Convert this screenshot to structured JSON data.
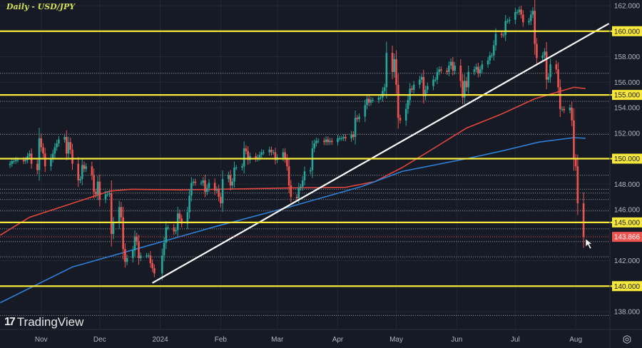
{
  "title": "Daily - USD/JPY",
  "brand": "TradingView",
  "colors": {
    "background": "#161a25",
    "up": "#26a69a",
    "down": "#ef5350",
    "level": "#f7e83b",
    "trendline": "#ffffff",
    "ma_red": "#e0463f",
    "ma_blue": "#2f7fd6",
    "axis_text": "#b2b5be"
  },
  "chart_data": {
    "type": "candlestick",
    "title": "Daily - USD/JPY",
    "ylim": [
      137.5,
      162.3
    ],
    "y_ticks": [
      "162.000",
      "158.000",
      "156.000",
      "154.000",
      "152.000",
      "148.000",
      "146.000",
      "142.000",
      "138.000"
    ],
    "x_ticks": [
      {
        "label": "Nov",
        "date": "2023-11-01"
      },
      {
        "label": "Dec",
        "date": "2023-12-01"
      },
      {
        "label": "2024",
        "date": "2024-01-01"
      },
      {
        "label": "Feb",
        "date": "2024-02-01"
      },
      {
        "label": "Mar",
        "date": "2024-03-01"
      },
      {
        "label": "Apr",
        "date": "2024-04-01"
      },
      {
        "label": "May",
        "date": "2024-05-01"
      },
      {
        "label": "Jun",
        "date": "2024-06-01"
      },
      {
        "label": "Jul",
        "date": "2024-07-01"
      },
      {
        "label": "Aug",
        "date": "2024-08-01"
      }
    ],
    "weeks": [
      {
        "start": "2023-10-16",
        "closes": [
          149.6,
          149.8,
          149.8,
          149.9,
          149.9
        ]
      },
      {
        "start": "2023-10-23",
        "closes": [
          149.8,
          149.9,
          150.2,
          150.4,
          149.6
        ]
      },
      {
        "start": "2023-10-30",
        "closes": [
          149.1,
          151.6,
          150.9,
          150.4,
          149.4
        ]
      },
      {
        "start": "2023-11-06",
        "closes": [
          150.0,
          150.4,
          150.9,
          151.2,
          151.5
        ]
      },
      {
        "start": "2023-11-13",
        "closes": [
          151.7,
          150.4,
          151.3,
          150.7,
          149.6
        ]
      },
      {
        "start": "2023-11-20",
        "closes": [
          148.3,
          148.4,
          149.5,
          149.2,
          149.4
        ]
      },
      {
        "start": "2023-11-27",
        "closes": [
          148.7,
          147.4,
          147.2,
          148.2,
          146.8
        ]
      },
      {
        "start": "2023-12-04",
        "closes": [
          147.2,
          147.2,
          147.3,
          144.1,
          145.0
        ]
      },
      {
        "start": "2023-12-11",
        "closes": [
          146.2,
          145.4,
          142.9,
          141.9,
          142.2
        ]
      },
      {
        "start": "2023-12-18",
        "closes": [
          142.8,
          143.9,
          143.5,
          142.2,
          142.4
        ]
      },
      {
        "start": "2023-12-25",
        "closes": [
          142.4,
          142.4,
          141.8,
          141.4,
          141.0
        ]
      },
      {
        "start": "2024-01-02",
        "closes": [
          142.4,
          143.4,
          144.6,
          144.6
        ]
      },
      {
        "start": "2024-01-08",
        "closes": [
          144.3,
          144.4,
          145.7,
          145.3,
          144.9
        ]
      },
      {
        "start": "2024-01-15",
        "closes": [
          145.8,
          147.1,
          148.1,
          148.2,
          148.1
        ]
      },
      {
        "start": "2024-01-22",
        "closes": [
          148.1,
          148.3,
          147.4,
          147.7,
          148.1
        ]
      },
      {
        "start": "2024-01-29",
        "closes": [
          147.5,
          147.6,
          147.0,
          146.5,
          148.4
        ]
      },
      {
        "start": "2024-02-05",
        "closes": [
          148.7,
          147.9,
          148.2,
          149.3,
          149.3
        ]
      },
      {
        "start": "2024-02-12",
        "closes": [
          149.4,
          150.8,
          150.6,
          149.9,
          150.2
        ]
      },
      {
        "start": "2024-02-19",
        "closes": [
          150.0,
          150.1,
          150.3,
          150.5,
          150.5
        ]
      },
      {
        "start": "2024-02-26",
        "closes": [
          150.7,
          150.5,
          150.5,
          149.9,
          150.1
        ]
      },
      {
        "start": "2024-03-04",
        "closes": [
          150.5,
          150.0,
          149.4,
          147.9,
          147.0
        ]
      },
      {
        "start": "2024-03-11",
        "closes": [
          146.9,
          147.7,
          147.8,
          148.3,
          149.0
        ]
      },
      {
        "start": "2024-03-18",
        "closes": [
          149.1,
          150.8,
          151.2,
          151.4,
          151.4
        ]
      },
      {
        "start": "2024-03-25",
        "closes": [
          151.3,
          151.5,
          151.3,
          151.4,
          151.3
        ]
      },
      {
        "start": "2024-04-01",
        "closes": [
          151.6,
          151.6,
          151.6,
          151.7,
          151.6
        ]
      },
      {
        "start": "2024-04-08",
        "closes": [
          151.9,
          151.7,
          153.2,
          153.1,
          153.3
        ]
      },
      {
        "start": "2024-04-15",
        "closes": [
          154.2,
          154.7,
          154.4,
          154.6,
          154.6
        ]
      },
      {
        "start": "2024-04-22",
        "closes": [
          154.8,
          154.8,
          155.3,
          155.6,
          158.3
        ]
      },
      {
        "start": "2024-04-29",
        "closes": [
          156.8,
          157.8,
          155.8,
          153.2,
          153.0
        ]
      },
      {
        "start": "2024-05-06",
        "closes": [
          153.9,
          154.6,
          155.5,
          155.4,
          155.8
        ]
      },
      {
        "start": "2024-05-13",
        "closes": [
          156.2,
          156.4,
          154.9,
          155.4,
          155.7
        ]
      },
      {
        "start": "2024-05-20",
        "closes": [
          156.2,
          156.2,
          156.8,
          157.0,
          156.9
        ]
      },
      {
        "start": "2024-05-27",
        "closes": [
          156.8,
          157.3,
          157.6,
          156.9,
          157.3
        ]
      },
      {
        "start": "2024-06-03",
        "closes": [
          156.1,
          154.8,
          156.1,
          155.6,
          156.8
        ]
      },
      {
        "start": "2024-06-10",
        "closes": [
          157.0,
          157.2,
          156.7,
          157.0,
          157.4
        ]
      },
      {
        "start": "2024-06-17",
        "closes": [
          157.7,
          158.1,
          158.1,
          158.9,
          159.8
        ]
      },
      {
        "start": "2024-06-24",
        "closes": [
          159.7,
          159.7,
          160.8,
          160.8,
          160.9
        ]
      },
      {
        "start": "2024-07-01",
        "closes": [
          161.5,
          161.5,
          161.7,
          161.3,
          160.7
        ]
      },
      {
        "start": "2024-07-08",
        "closes": [
          160.8,
          161.3,
          161.6,
          159.0,
          157.9
        ]
      },
      {
        "start": "2024-07-15",
        "closes": [
          158.1,
          158.4,
          156.2,
          156.4,
          157.4
        ]
      },
      {
        "start": "2024-07-22",
        "closes": [
          157.0,
          155.6,
          153.9,
          153.9,
          153.8
        ]
      },
      {
        "start": "2024-07-29",
        "closes": [
          154.0,
          153.0,
          150.0,
          149.4,
          146.5
        ]
      },
      {
        "start": "2024-08-05",
        "closes": [
          143.866
        ]
      }
    ],
    "last_price": "143.866",
    "key_levels": [
      {
        "value": 160,
        "label": "160.000"
      },
      {
        "value": 155,
        "label": "155.000"
      },
      {
        "value": 150,
        "label": "150.000"
      },
      {
        "value": 145,
        "label": "145.000"
      },
      {
        "value": 140,
        "label": "140.000"
      }
    ],
    "dotted_levels": [
      156.7,
      154.5,
      151.9,
      148.7,
      147.6,
      147.3,
      146.8,
      145.9,
      144.5,
      143.5,
      142.3,
      137.7
    ],
    "trendline": [
      {
        "date": "2023-12-28",
        "value": 140.25
      },
      {
        "date": "2024-08-18",
        "value": 160.6
      }
    ],
    "moving_averages": [
      {
        "color_key": "ma_red",
        "points": [
          {
            "date": "2023-10-11",
            "value": 144.0
          },
          {
            "date": "2023-10-26",
            "value": 145.4
          },
          {
            "date": "2023-11-17",
            "value": 146.5
          },
          {
            "date": "2023-12-06",
            "value": 147.45
          },
          {
            "date": "2023-12-17",
            "value": 147.6
          },
          {
            "date": "2024-01-12",
            "value": 147.55
          },
          {
            "date": "2024-03-07",
            "value": 147.7
          },
          {
            "date": "2024-04-05",
            "value": 147.75
          },
          {
            "date": "2024-04-20",
            "value": 148.2
          },
          {
            "date": "2024-05-04",
            "value": 149.3
          },
          {
            "date": "2024-05-19",
            "value": 150.7
          },
          {
            "date": "2024-06-06",
            "value": 152.4
          },
          {
            "date": "2024-06-24",
            "value": 153.5
          },
          {
            "date": "2024-07-11",
            "value": 154.7
          },
          {
            "date": "2024-07-31",
            "value": 155.6
          },
          {
            "date": "2024-08-06",
            "value": 155.5
          }
        ]
      },
      {
        "color_key": "ma_blue",
        "points": [
          {
            "date": "2023-10-11",
            "value": 138.7
          },
          {
            "date": "2023-11-17",
            "value": 141.5
          },
          {
            "date": "2023-12-24",
            "value": 143.1
          },
          {
            "date": "2024-01-30",
            "value": 144.7
          },
          {
            "date": "2024-03-07",
            "value": 146.2
          },
          {
            "date": "2024-04-13",
            "value": 147.8
          },
          {
            "date": "2024-05-04",
            "value": 149.0
          },
          {
            "date": "2024-06-06",
            "value": 150.0
          },
          {
            "date": "2024-06-24",
            "value": 150.6
          },
          {
            "date": "2024-07-13",
            "value": 151.3
          },
          {
            "date": "2024-07-31",
            "value": 151.65
          },
          {
            "date": "2024-08-06",
            "value": 151.6
          }
        ]
      }
    ]
  }
}
